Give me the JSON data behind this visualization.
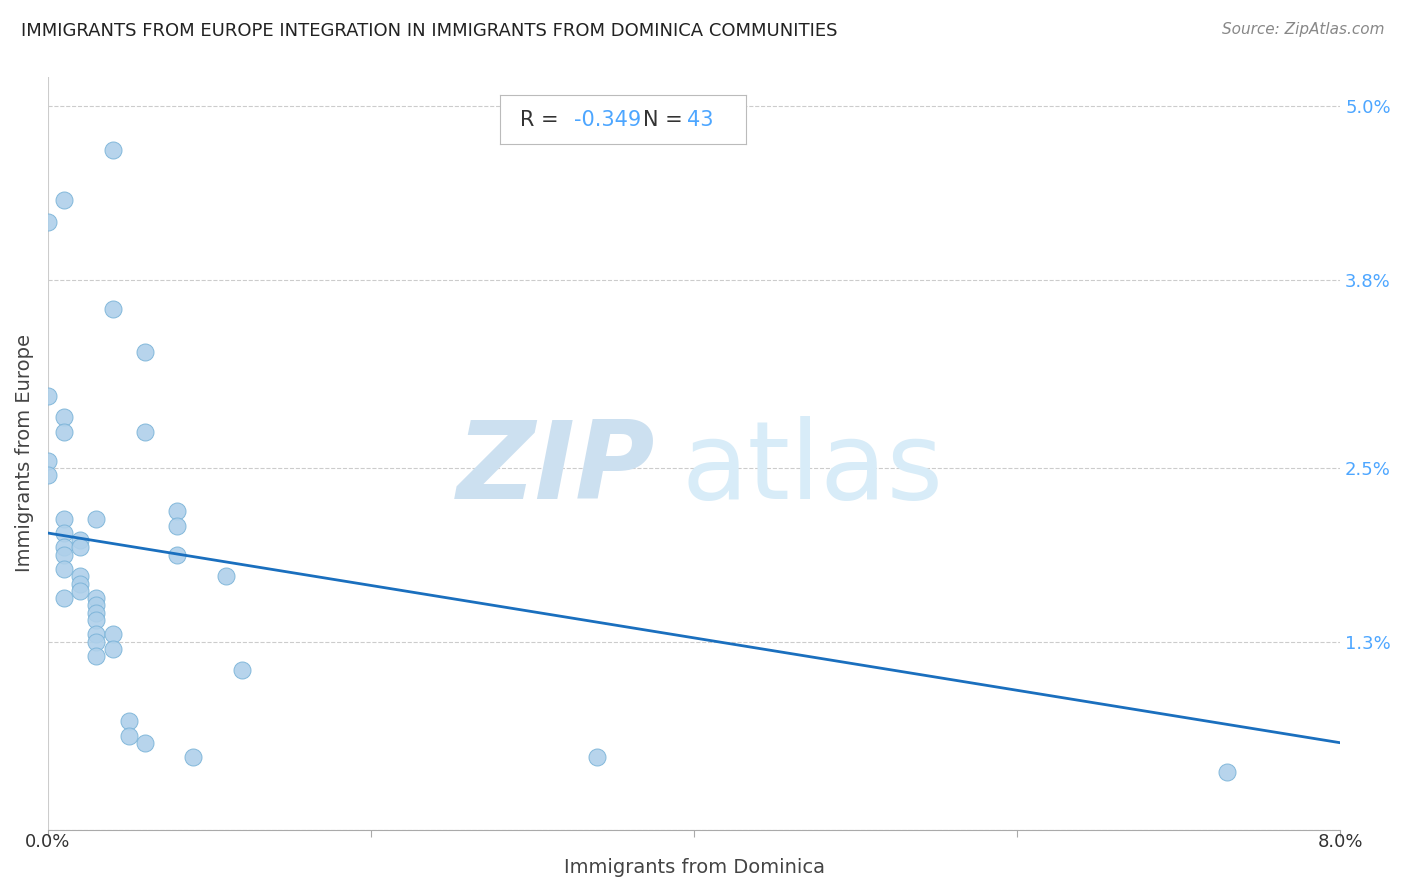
{
  "title": "IMMIGRANTS FROM EUROPE INTEGRATION IN IMMIGRANTS FROM DOMINICA COMMUNITIES",
  "source": "Source: ZipAtlas.com",
  "xlabel": "Immigrants from Dominica",
  "ylabel": "Immigrants from Europe",
  "R_value_str": "-0.349",
  "N_value_str": "43",
  "xlim": [
    0.0,
    0.08
  ],
  "ylim": [
    0.0,
    0.052
  ],
  "scatter_color": "#afd0ea",
  "scatter_edgecolor": "#7ab3d8",
  "line_color": "#1a6fbe",
  "title_color": "#222222",
  "right_tick_color": "#4da6ff",
  "watermark_zip_color": "#cce0f0",
  "watermark_atlas_color": "#d8ecf8",
  "points": [
    [
      0.001,
      0.0435
    ],
    [
      0.004,
      0.047
    ],
    [
      0.0,
      0.042
    ],
    [
      0.004,
      0.036
    ],
    [
      0.006,
      0.033
    ],
    [
      0.0,
      0.03
    ],
    [
      0.001,
      0.0285
    ],
    [
      0.001,
      0.0275
    ],
    [
      0.006,
      0.0275
    ],
    [
      0.0,
      0.0255
    ],
    [
      0.0,
      0.0245
    ],
    [
      0.001,
      0.0215
    ],
    [
      0.003,
      0.0215
    ],
    [
      0.008,
      0.022
    ],
    [
      0.008,
      0.021
    ],
    [
      0.001,
      0.0205
    ],
    [
      0.001,
      0.0195
    ],
    [
      0.002,
      0.02
    ],
    [
      0.002,
      0.0195
    ],
    [
      0.001,
      0.019
    ],
    [
      0.008,
      0.019
    ],
    [
      0.001,
      0.018
    ],
    [
      0.011,
      0.0175
    ],
    [
      0.002,
      0.0175
    ],
    [
      0.002,
      0.017
    ],
    [
      0.002,
      0.0165
    ],
    [
      0.001,
      0.016
    ],
    [
      0.003,
      0.016
    ],
    [
      0.003,
      0.0155
    ],
    [
      0.003,
      0.015
    ],
    [
      0.003,
      0.0145
    ],
    [
      0.003,
      0.0135
    ],
    [
      0.004,
      0.0135
    ],
    [
      0.003,
      0.013
    ],
    [
      0.003,
      0.012
    ],
    [
      0.004,
      0.0125
    ],
    [
      0.012,
      0.011
    ],
    [
      0.005,
      0.0075
    ],
    [
      0.005,
      0.0065
    ],
    [
      0.006,
      0.006
    ],
    [
      0.009,
      0.005
    ],
    [
      0.034,
      0.005
    ],
    [
      0.073,
      0.004
    ]
  ],
  "trendline_x": [
    0.0,
    0.08
  ],
  "trendline_y_start": 0.0205,
  "trendline_y_end": 0.006,
  "ytick_positions": [
    0.0,
    0.013,
    0.025,
    0.038,
    0.05
  ],
  "ytick_labels": [
    "",
    "1.3%",
    "2.5%",
    "3.8%",
    "5.0%"
  ],
  "xtick_edge_left": "0.0%",
  "xtick_edge_right": "8.0%"
}
